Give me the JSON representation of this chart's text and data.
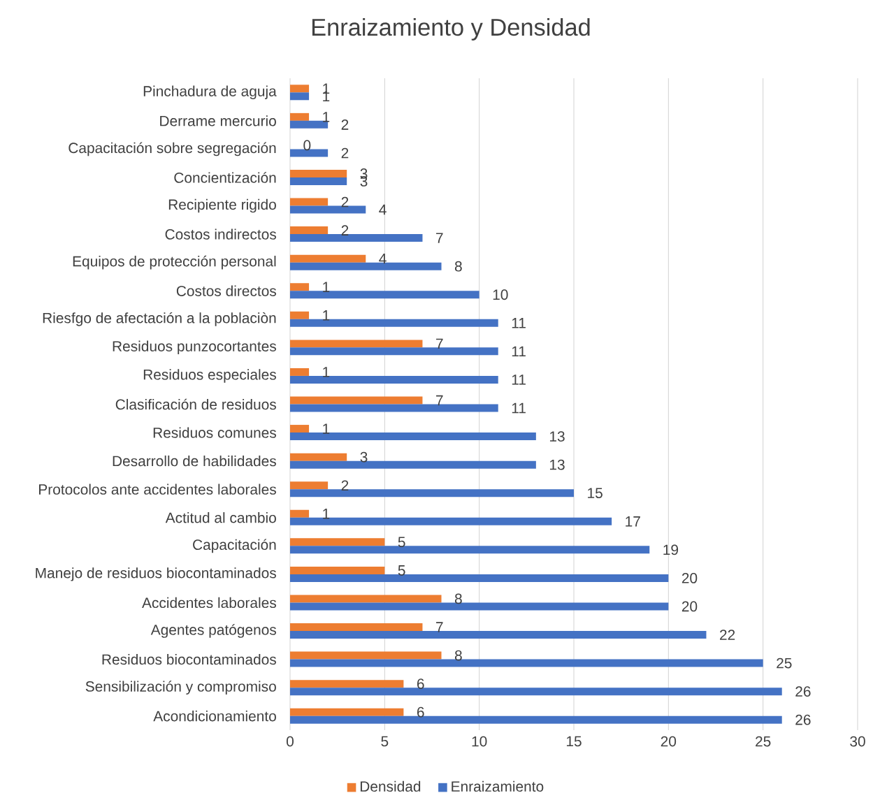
{
  "chart_data": {
    "type": "bar",
    "orientation": "horizontal",
    "title": "Enraizamiento y Densidad",
    "categories": [
      "Pinchadura de aguja",
      "Derrame mercurio",
      "Capacitación sobre segregación",
      "Concientización",
      "Recipiente rigido",
      "Costos indirectos",
      "Equipos de protección personal",
      "Costos directos",
      "Riesfgo de afectación a la poblaciòn",
      "Residuos punzocortantes",
      "Residuos especiales",
      "Clasificación de residuos",
      "Residuos comunes",
      "Desarrollo de habilidades",
      "Protocolos ante accidentes laborales",
      "Actitud al cambio",
      "Capacitación",
      "Manejo de residuos biocontaminados",
      "Accidentes laborales",
      "Agentes patógenos",
      "Residuos biocontaminados",
      "Sensibilización y compromiso",
      "Acondicionamiento"
    ],
    "series": [
      {
        "name": "Densidad",
        "color": "#ed7d31",
        "values": [
          1,
          1,
          0,
          3,
          2,
          2,
          4,
          1,
          1,
          7,
          1,
          7,
          1,
          3,
          2,
          1,
          5,
          5,
          8,
          7,
          8,
          6,
          6
        ]
      },
      {
        "name": "Enraizamiento",
        "color": "#4472c4",
        "values": [
          1,
          2,
          2,
          3,
          4,
          7,
          8,
          10,
          11,
          11,
          11,
          11,
          13,
          13,
          15,
          17,
          19,
          20,
          20,
          22,
          25,
          26,
          26
        ]
      }
    ],
    "xlim": [
      0,
      30
    ],
    "xticks": [
      0,
      5,
      10,
      15,
      20,
      25,
      30
    ],
    "grid": "x",
    "legend": "bottom",
    "data_labels": true
  }
}
